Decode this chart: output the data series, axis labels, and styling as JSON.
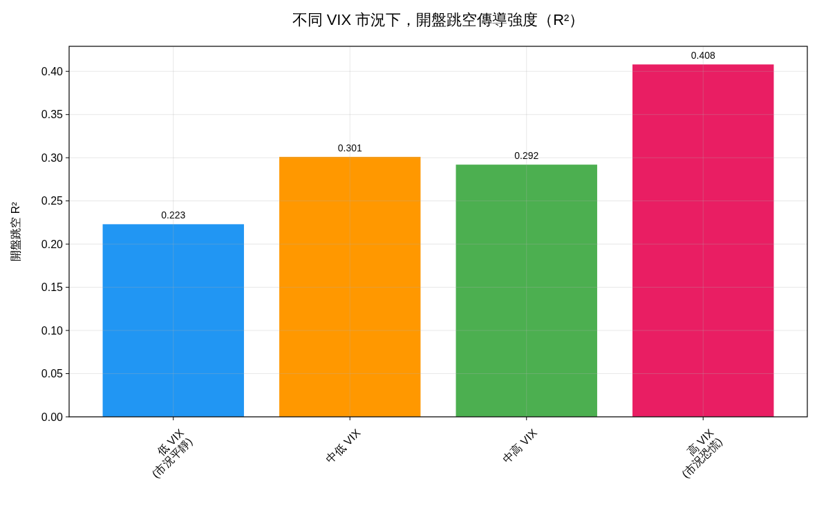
{
  "chart_data": {
    "type": "bar",
    "title": "不同 VIX 市況下，開盤跳空傳導強度（R²）",
    "ylabel": "開盤跳空 R²",
    "categories": [
      "低 VIX\n(市況平靜)",
      "中低 VIX",
      "中高 VIX",
      "高 VIX\n(市況恐慌)"
    ],
    "values": [
      0.223,
      0.301,
      0.292,
      0.408
    ],
    "colors": [
      "#2196f3",
      "#ff9800",
      "#4caf50",
      "#e91e63"
    ],
    "ylim": [
      0,
      0.429
    ],
    "yticks": [
      {
        "value": 0,
        "label": "0.00"
      },
      {
        "value": 0.05,
        "label": "0.05"
      },
      {
        "value": 0.1,
        "label": "0.10"
      },
      {
        "value": 0.15,
        "label": "0.15"
      },
      {
        "value": 0.2,
        "label": "0.20"
      },
      {
        "value": 0.25,
        "label": "0.25"
      },
      {
        "value": 0.3,
        "label": "0.30"
      },
      {
        "value": 0.35,
        "label": "0.35"
      },
      {
        "value": 0.4,
        "label": "0.40"
      }
    ],
    "grid": true,
    "data_labels": true
  }
}
